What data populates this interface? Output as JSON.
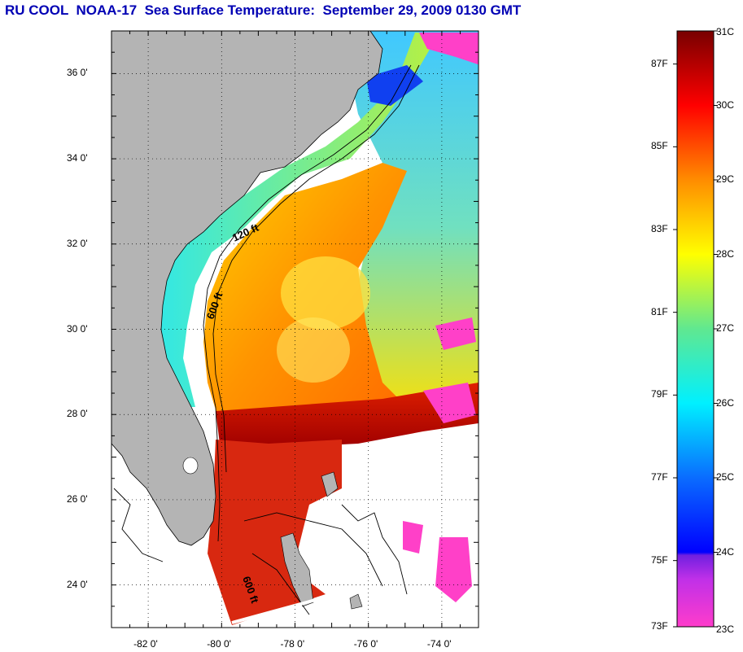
{
  "title": "RU COOL  NOAA-17  Sea Surface Temperature:  September 29, 2009 0130 GMT",
  "map": {
    "lat_labels": [
      "36 0'",
      "34 0'",
      "32 0'",
      "30 0'",
      "28 0'",
      "26 0'",
      "24 0'"
    ],
    "lon_labels": [
      "-82 0'",
      "-80 0'",
      "-78 0'",
      "-76 0'",
      "-74 0'"
    ],
    "lat_range": [
      23,
      37
    ],
    "lon_range": [
      -83,
      -73
    ],
    "isobath_labels": [
      "120 ft",
      "600 ft",
      "600 ft"
    ],
    "land_color": "#b4b4b4",
    "ocean_nodata_color": "#ffffff"
  },
  "colorbar": {
    "celsius_labels": [
      "31C",
      "30C",
      "29C",
      "28C",
      "27C",
      "26C",
      "25C",
      "24C",
      "23C"
    ],
    "fahrenheit_labels": [
      "87F",
      "85F",
      "83F",
      "81F",
      "79F",
      "77F",
      "75F",
      "73F"
    ],
    "range_c": [
      23,
      31
    ],
    "colors": [
      "#ff3ccb",
      "#9a30e0",
      "#0000ff",
      "#0a78ff",
      "#00f0ff",
      "#3ee0a0",
      "#b4f03c",
      "#ffff00",
      "#ffb400",
      "#ff6400",
      "#ff0000",
      "#a00000",
      "#780000"
    ]
  },
  "chart_data": {
    "type": "heatmap",
    "title": "RU COOL  NOAA-17  Sea Surface Temperature:  September 29, 2009 0130 GMT",
    "x_ticks": [
      "-82 0'",
      "-80 0'",
      "-78 0'",
      "-76 0'",
      "-74 0'"
    ],
    "y_ticks": [
      "36 0'",
      "34 0'",
      "32 0'",
      "30 0'",
      "28 0'",
      "26 0'",
      "24 0'"
    ],
    "xlim": [
      -83,
      -73
    ],
    "ylim": [
      23,
      37
    ],
    "colorbar_c": [
      23,
      31
    ],
    "colorbar_f": [
      73,
      87
    ],
    "grid": true
  }
}
